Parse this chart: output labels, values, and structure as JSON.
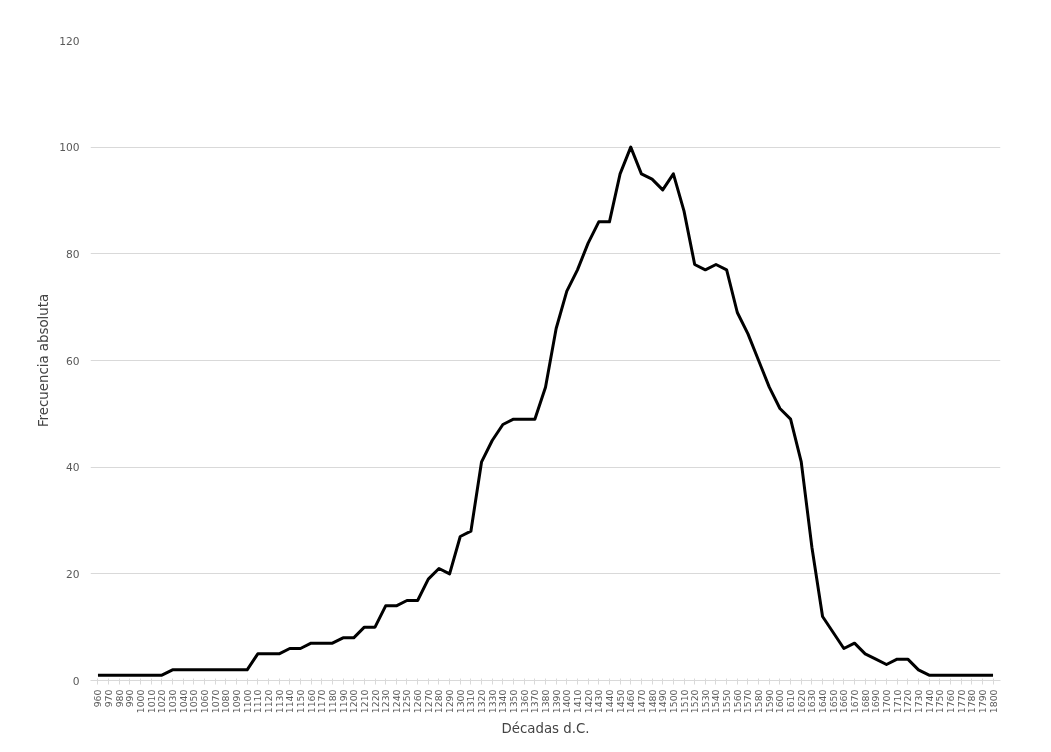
{
  "chart_data": {
    "type": "line",
    "xlabel": "Décadas d.C.",
    "ylabel": "Frecuencia absoluta",
    "categories": [
      "960",
      "970",
      "980",
      "990",
      "1000",
      "1010",
      "1020",
      "1030",
      "1040",
      "1050",
      "1060",
      "1070",
      "1080",
      "1090",
      "1100",
      "1110",
      "1120",
      "1130",
      "1140",
      "1150",
      "1160",
      "1170",
      "1180",
      "1190",
      "1200",
      "1210",
      "1220",
      "1230",
      "1240",
      "1250",
      "1260",
      "1270",
      "1280",
      "1290",
      "1300",
      "1310",
      "1320",
      "1330",
      "1340",
      "1350",
      "1360",
      "1370",
      "1380",
      "1390",
      "1400",
      "1410",
      "1420",
      "1430",
      "1440",
      "1450",
      "1460",
      "1470",
      "1480",
      "1490",
      "1500",
      "1510",
      "1520",
      "1530",
      "1540",
      "1550",
      "1560",
      "1570",
      "1580",
      "1590",
      "1600",
      "1610",
      "1620",
      "1630",
      "1640",
      "1650",
      "1660",
      "1670",
      "1680",
      "1690",
      "1700",
      "1710",
      "1720",
      "1730",
      "1740",
      "1750",
      "1760",
      "1770",
      "1780",
      "1790",
      "1800"
    ],
    "series": [
      {
        "color": "#000000",
        "values": [
          1,
          1,
          1,
          1,
          1,
          1,
          1,
          2,
          2,
          2,
          2,
          2,
          2,
          2,
          2,
          5,
          5,
          5,
          6,
          6,
          7,
          7,
          7,
          8,
          8,
          10,
          10,
          14,
          14,
          15,
          15,
          19,
          21,
          20,
          27,
          28,
          41,
          45,
          48,
          49,
          49,
          49,
          55,
          66,
          73,
          77,
          82,
          86,
          86,
          95,
          100,
          95,
          94,
          92,
          95,
          88,
          78,
          77,
          78,
          77,
          69,
          65,
          60,
          55,
          51,
          49,
          41,
          25,
          12,
          9,
          6,
          7,
          5,
          4,
          3,
          4,
          4,
          2,
          1,
          1,
          1,
          1,
          1,
          1,
          1
        ]
      }
    ],
    "ylim": [
      0,
      120
    ],
    "yticks": [
      0,
      20,
      40,
      60,
      80,
      100,
      120
    ],
    "grid": "y",
    "marker": "none",
    "line_style": "solid"
  }
}
